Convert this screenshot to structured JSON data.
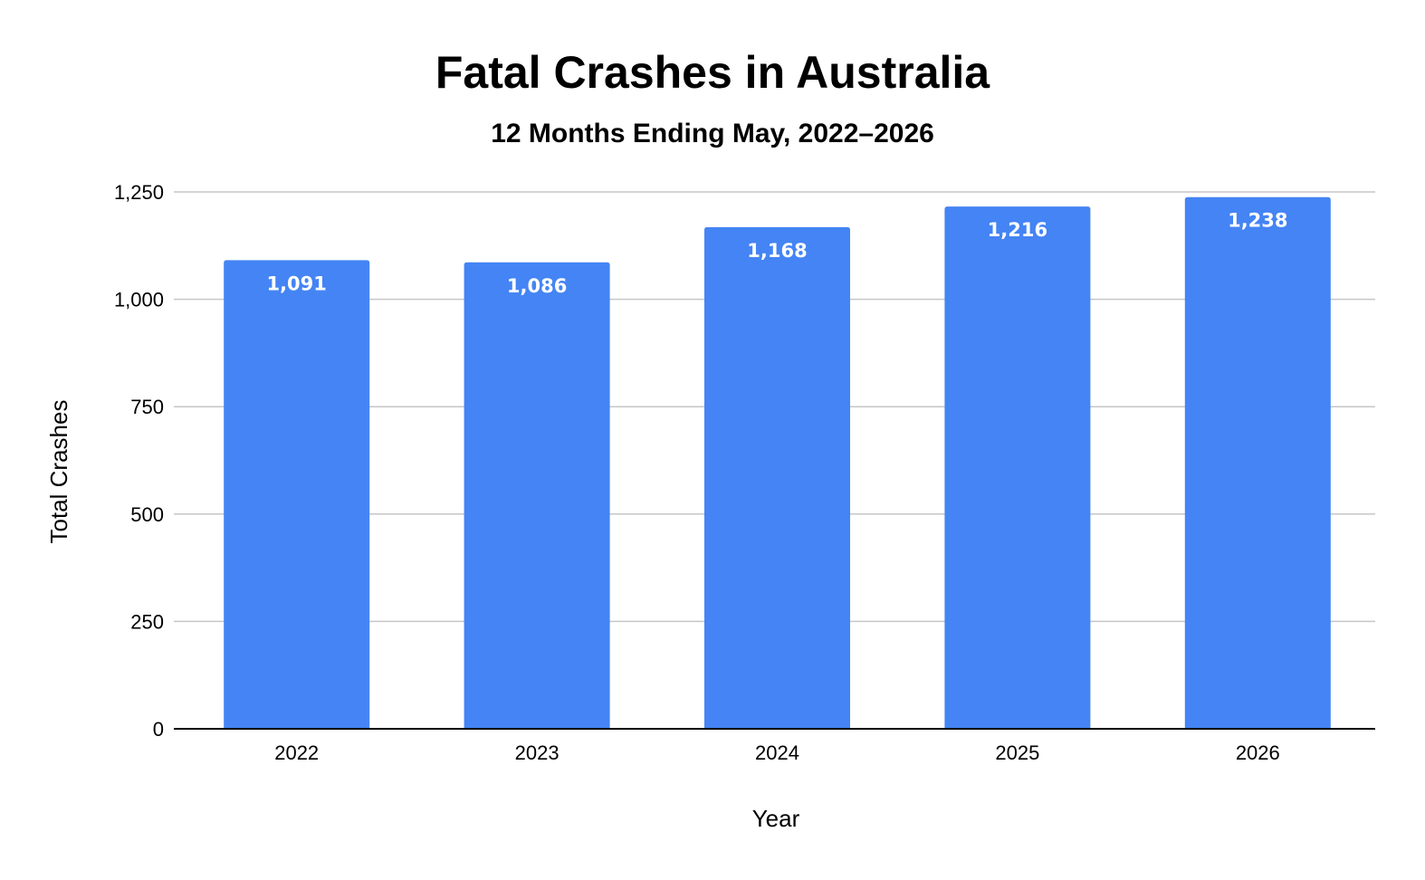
{
  "chart_data": {
    "type": "bar",
    "title": "Fatal Crashes in Australia",
    "subtitle": "12 Months Ending May, 2022–2026",
    "xlabel": "Year",
    "ylabel": "Total Crashes",
    "categories": [
      "2022",
      "2023",
      "2024",
      "2025",
      "2026"
    ],
    "values": [
      1091,
      1086,
      1168,
      1216,
      1238
    ],
    "data_labels": [
      "1,091",
      "1,086",
      "1,168",
      "1,216",
      "1,238"
    ],
    "ylim": [
      0,
      1250
    ],
    "yticks": [
      0,
      250,
      500,
      750,
      1000,
      1250
    ],
    "ytick_labels": [
      "0",
      "250",
      "500",
      "750",
      "1,000",
      "1,250"
    ],
    "grid": true,
    "legend": "none",
    "bar_color": "#4484f4"
  }
}
